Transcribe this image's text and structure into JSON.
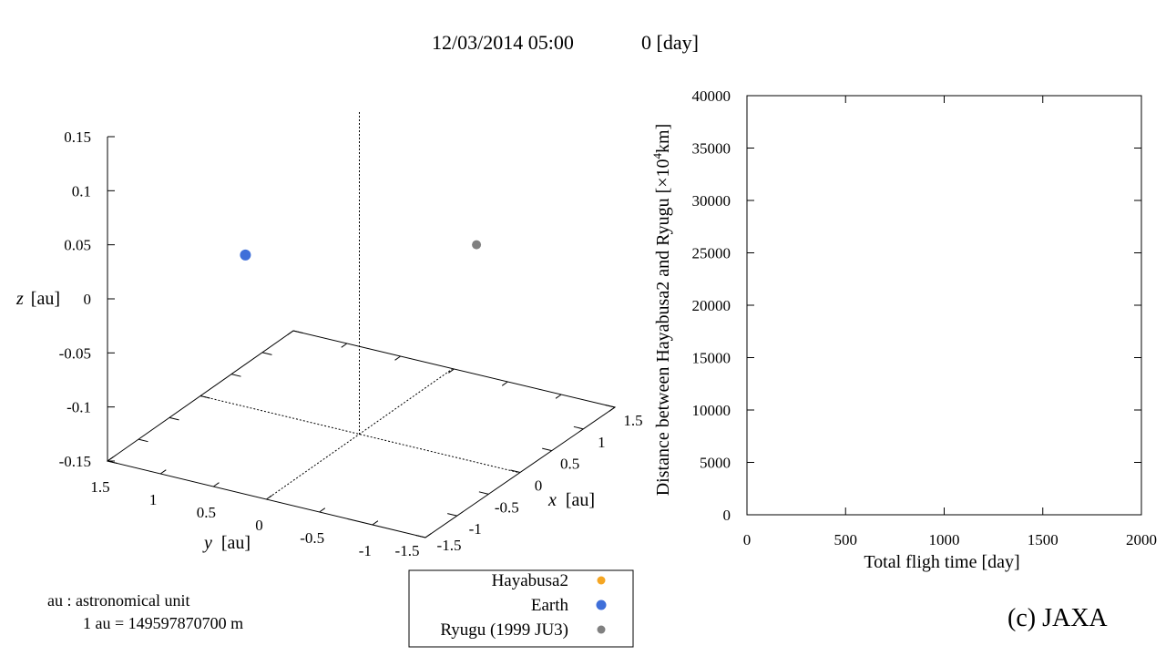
{
  "header": {
    "datetime": "12/03/2014 05:00",
    "elapsed": "0 [day]"
  },
  "chart_data": [
    {
      "type": "scatter",
      "projection": "3d",
      "x_axis": {
        "label_var": "x",
        "label_unit": "[au]",
        "ticks": [
          "-1.5",
          "-1",
          "-0.5",
          "0",
          "0.5",
          "1",
          "1.5"
        ],
        "range": [
          -1.5,
          1.5
        ]
      },
      "y_axis": {
        "label_var": "y",
        "label_unit": "[au]",
        "ticks": [
          "1.5",
          "1",
          "0.5",
          "0",
          "-0.5",
          "-1",
          "-1.5"
        ],
        "range": [
          -1.5,
          1.5
        ]
      },
      "z_axis": {
        "label_var": "z",
        "label_unit": "[au]",
        "ticks": [
          "0.15",
          "0.1",
          "0.05",
          "0",
          "-0.05",
          "-0.1",
          "-0.15"
        ],
        "range": [
          -0.15,
          0.15
        ]
      },
      "series": [
        {
          "name": "Hayabusa2",
          "color": "#f5a623",
          "points": []
        },
        {
          "name": "Earth",
          "color": "#3f6fd9",
          "points": [
            {
              "x": -0.18,
              "y": 0.97,
              "z": 0.0
            }
          ]
        },
        {
          "name": "Ryugu (1999 JU3)",
          "color": "#808080",
          "points": [
            {
              "x": 0.95,
              "y": -0.55,
              "z": 0.0
            }
          ]
        }
      ],
      "legend_position": "bottom-center"
    },
    {
      "type": "line",
      "xlabel": "Total fligh time [day]",
      "ylabel_main": "Distance between Hayabusa2 and Ryugu [×10",
      "ylabel_sup": "4",
      "ylabel_tail": "km]",
      "x_ticks": [
        "0",
        "500",
        "1000",
        "1500",
        "2000"
      ],
      "y_ticks": [
        "0",
        "5000",
        "10000",
        "15000",
        "20000",
        "25000",
        "30000",
        "35000",
        "40000"
      ],
      "xlim": [
        0,
        2000
      ],
      "ylim": [
        0,
        40000
      ],
      "series": []
    }
  ],
  "notes": {
    "line1": "au : astronomical unit",
    "line2": "1 au = 149597870700 m"
  },
  "credit": "(c) JAXA"
}
